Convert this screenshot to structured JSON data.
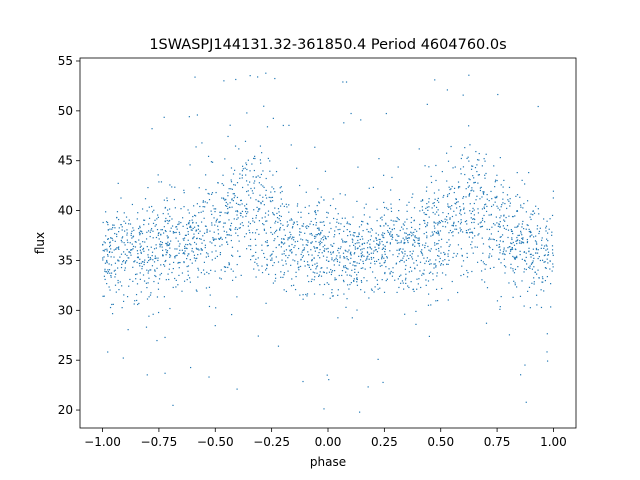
{
  "chart_data": {
    "type": "scatter",
    "title": "1SWASPJ144131.32-361850.4 Period 4604760.0s",
    "xlabel": "phase",
    "ylabel": "flux",
    "xlim": [
      -1.1,
      1.1
    ],
    "ylim": [
      18.2,
      55.3
    ],
    "xticks": [
      -1.0,
      -0.75,
      -0.5,
      -0.25,
      0.0,
      0.25,
      0.5,
      0.75,
      1.0
    ],
    "xtick_labels": [
      "−1.00",
      "−0.75",
      "−0.50",
      "−0.25",
      "0.00",
      "0.25",
      "0.50",
      "0.75",
      "1.00"
    ],
    "yticks": [
      20,
      25,
      30,
      35,
      40,
      45,
      50,
      55
    ],
    "ytick_labels": [
      "20",
      "25",
      "30",
      "35",
      "40",
      "45",
      "50",
      "55"
    ],
    "grid": false,
    "legend": "none",
    "point_color": "#1f77b4",
    "profile": {
      "phase": [
        -1.0,
        -0.9,
        -0.8,
        -0.7,
        -0.6,
        -0.5,
        -0.4,
        -0.3,
        -0.2,
        -0.1,
        0.0,
        0.1,
        0.2,
        0.3,
        0.4,
        0.5,
        0.6,
        0.7,
        0.8,
        0.9,
        1.0
      ],
      "median_flux": [
        35.5,
        36.0,
        36.2,
        36.3,
        37.0,
        38.5,
        40.0,
        39.5,
        37.5,
        36.5,
        36.0,
        35.5,
        36.0,
        36.2,
        36.6,
        38.0,
        40.0,
        39.8,
        37.6,
        36.3,
        35.6
      ],
      "scatter_halfwidth": [
        3.0,
        3.5,
        3.5,
        3.3,
        3.3,
        3.8,
        4.3,
        4.3,
        3.6,
        3.3,
        3.3,
        3.2,
        3.2,
        3.4,
        3.5,
        3.8,
        4.3,
        4.3,
        3.8,
        3.5,
        3.0
      ]
    }
  }
}
